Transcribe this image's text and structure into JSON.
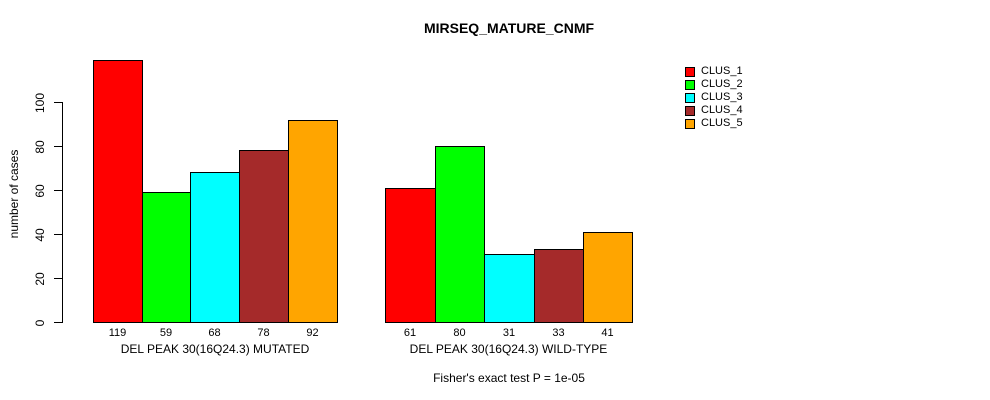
{
  "chart_data": {
    "type": "bar",
    "title": "MIRSEQ_MATURE_CNMF",
    "ylabel": "number of cases",
    "xlabel": "",
    "yticks": [
      0,
      20,
      40,
      60,
      80,
      100
    ],
    "ylim": [
      0,
      125
    ],
    "grid": false,
    "legend_position": "right",
    "clusters": [
      {
        "name": "CLUS_1",
        "color": "#FF0000"
      },
      {
        "name": "CLUS_2",
        "color": "#00FF00"
      },
      {
        "name": "CLUS_3",
        "color": "#00FFFF"
      },
      {
        "name": "CLUS_4",
        "color": "#A52A2A"
      },
      {
        "name": "CLUS_5",
        "color": "#FFA500"
      }
    ],
    "groups": [
      {
        "label": "DEL PEAK 30(16Q24.3) MUTATED",
        "values": [
          119,
          59,
          68,
          78,
          92
        ]
      },
      {
        "label": "DEL PEAK 30(16Q24.3) WILD-TYPE",
        "values": [
          61,
          80,
          31,
          33,
          41
        ]
      }
    ],
    "footnote": "Fisher's exact test P = 1e-05",
    "bar_border_color": "#000000",
    "text_color": "#000000",
    "background_color": "#FFFFFF"
  }
}
